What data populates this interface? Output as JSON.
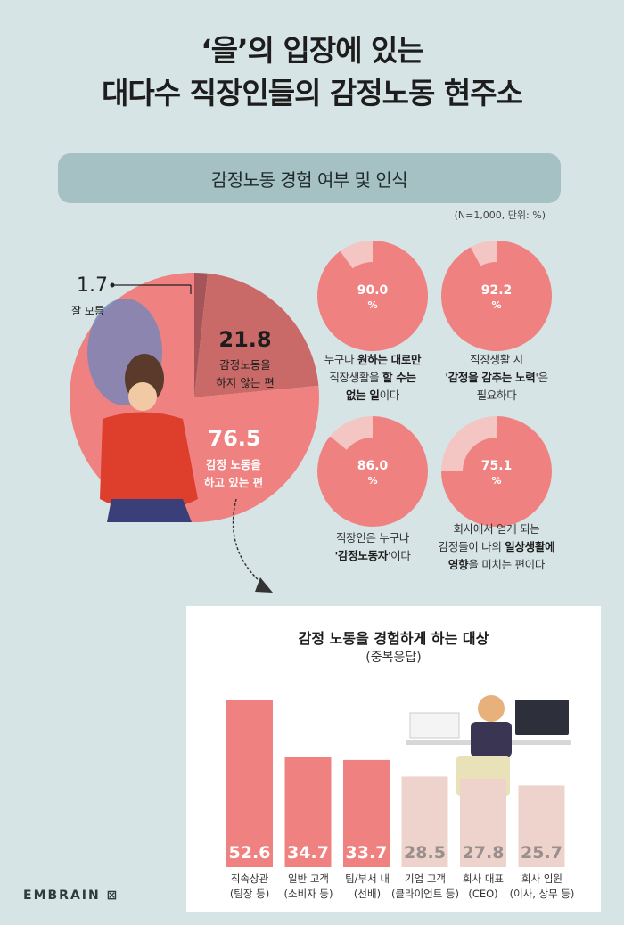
{
  "title": {
    "line1": "‘을’의 입장에 있는",
    "line2": "대다수 직장인들의 감정노동 현주소"
  },
  "section_header": "감정노동 경험 여부 및 인식",
  "note": "(N=1,000, 단위: %)",
  "colors": {
    "accent": "#ef8280",
    "accent_light": "#f3c6c4",
    "beige": "#eed3cd",
    "dark_slice": "#c96a68",
    "bg": "#d7e4e6"
  },
  "pie": {
    "slices": [
      {
        "label": "감정 노동을 하고 있는 편",
        "value": "76.5",
        "l1": "감정 노동을",
        "l2": "하고 있는 편"
      },
      {
        "label": "감정노동을 하지 않는 편",
        "value": "21.8",
        "l1": "감정노동을",
        "l2": "하지 않는 편"
      },
      {
        "label": "잘 모름",
        "value": "1.7"
      }
    ]
  },
  "donuts": [
    {
      "value": "90.0",
      "pct": "%",
      "l1a": "누구나 ",
      "l1b": "원하는 대로만",
      "l2": "직장생활을 ",
      "l2b": "할 수는",
      "l3b": "없는 일",
      "l3": "이다"
    },
    {
      "value": "92.2",
      "pct": "%",
      "l1a": "직장생활 시",
      "l2a": "'",
      "l2b": "감정을 감추는 노력",
      "l2c": "'은",
      "l3": "필요하다"
    },
    {
      "value": "86.0",
      "pct": "%",
      "l1a": "직장인은 누구나",
      "l2a": "'",
      "l2b": "감정노동자",
      "l2c": "'이다"
    },
    {
      "value": "75.1",
      "pct": "%",
      "l1a": "회사에서 얻게 되는",
      "l2a": "감정들이 나의 ",
      "l2b": "일상생활에",
      "l3b": "영향",
      "l3": "을 미치는 편이다"
    }
  ],
  "chart_data": [
    {
      "type": "pie",
      "categories": [
        "감정 노동을 하고 있는 편",
        "감정노동을 하지 않는 편",
        "잘 모름"
      ],
      "values": [
        76.5,
        21.8,
        1.7
      ]
    },
    {
      "type": "pie",
      "title": "누구나 원하는 대로만 직장생활을 할 수는 없는 일이다",
      "values": [
        90.0
      ]
    },
    {
      "type": "pie",
      "title": "직장생활 시 '감정을 감추는 노력'은 필요하다",
      "values": [
        92.2
      ]
    },
    {
      "type": "pie",
      "title": "직장인은 누구나 '감정노동자'이다",
      "values": [
        86.0
      ]
    },
    {
      "type": "pie",
      "title": "회사에서 얻게 되는 감정들이 나의 일상생활에 영향을 미치는 편이다",
      "values": [
        75.1
      ]
    },
    {
      "type": "bar",
      "title": "감정 노동을 경험하게 하는 대상",
      "subtitle": "(중복응답)",
      "categories": [
        "직속상관 (팀장 등)",
        "일반 고객 (소비자 등)",
        "팀/부서 내 (선배)",
        "기업 고객 (클라이언트 등)",
        "회사 대표 (CEO)",
        "회사 임원 (이사, 상무 등)"
      ],
      "values": [
        52.6,
        34.7,
        33.7,
        28.5,
        27.8,
        25.7
      ],
      "ylim": [
        0,
        55
      ]
    }
  ],
  "bars": {
    "title": "감정 노동을 경험하게 하는 대상",
    "subtitle": "(중복응답)",
    "labels": [
      {
        "l1": "직속상관",
        "l2": "(팀장 등)",
        "value": "52.6"
      },
      {
        "l1": "일반 고객",
        "l2": "(소비자 등)",
        "value": "34.7"
      },
      {
        "l1": "팀/부서 내",
        "l2": "(선배)",
        "value": "33.7"
      },
      {
        "l1": "기업 고객",
        "l2": "(클라이언트 등)",
        "value": "28.5"
      },
      {
        "l1": "회사 대표",
        "l2": "(CEO)",
        "value": "27.8"
      },
      {
        "l1": "회사 임원",
        "l2": "(이사, 상무 등)",
        "value": "25.7"
      }
    ]
  },
  "logo": "EMBRAIN"
}
